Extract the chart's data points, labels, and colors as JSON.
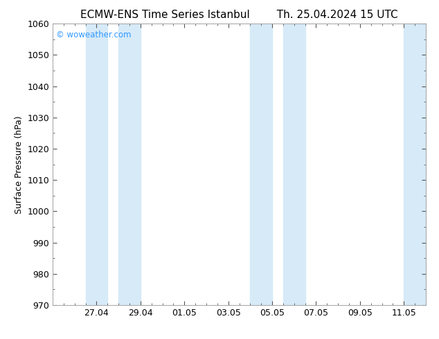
{
  "title": "ECMW-ENS Time Series Istanbul",
  "title2": "Th. 25.04.2024 15 UTC",
  "ylabel": "Surface Pressure (hPa)",
  "ylim": [
    970,
    1060
  ],
  "ytick_interval": 10,
  "background_color": "#ffffff",
  "plot_bg_color": "#ffffff",
  "watermark": "© woweather.com",
  "watermark_color": "#3399ff",
  "shade_color": "#d6eaf8",
  "xtick_labels": [
    "27.04",
    "29.04",
    "01.05",
    "03.05",
    "05.05",
    "07.05",
    "09.05",
    "11.05"
  ],
  "xtick_positions": [
    2,
    4,
    6,
    8,
    10,
    12,
    14,
    16
  ],
  "x_min": 0,
  "x_max": 17,
  "shaded_bands": [
    [
      1.5,
      2.5
    ],
    [
      3.0,
      4.0
    ],
    [
      9.0,
      10.0
    ],
    [
      10.5,
      11.5
    ],
    [
      16.0,
      17.0
    ]
  ],
  "title_fontsize": 11,
  "ylabel_fontsize": 9,
  "tick_fontsize": 9,
  "watermark_fontsize": 8.5
}
